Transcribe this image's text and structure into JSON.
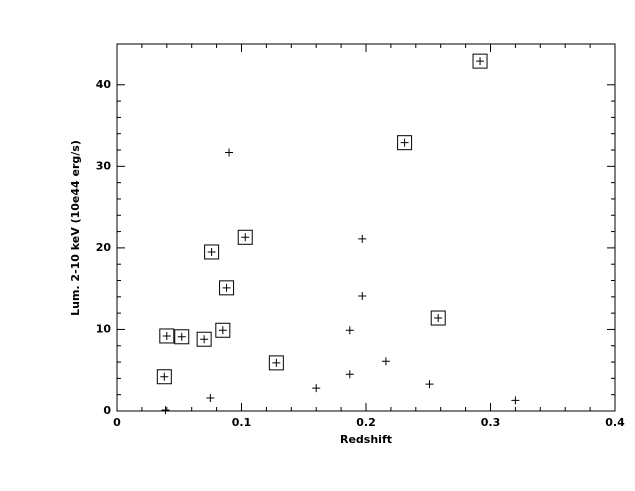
{
  "chart_data": {
    "type": "scatter",
    "xlabel": "Redshift",
    "ylabel": "Lum. 2-10 keV (10e44 erg/s)",
    "xlim": [
      0,
      0.4
    ],
    "xticks": [
      0,
      0.1,
      0.2,
      0.3,
      0.4
    ],
    "ylim": [
      0,
      45
    ],
    "yticks": [
      0,
      10,
      20,
      30,
      40
    ],
    "series": [
      {
        "marker": "boxed-plus",
        "color": "#000000",
        "x": [
          0.2916,
          0.231,
          0.076,
          0.103,
          0.088,
          0.258,
          0.085,
          0.04,
          0.052,
          0.07,
          0.128,
          0.038
        ],
        "values": [
          42.9,
          32.9,
          19.5,
          21.3,
          15.1,
          11.4,
          9.9,
          9.2,
          9.1,
          8.8,
          5.9,
          4.2
        ]
      },
      {
        "marker": "plus",
        "color": "#000000",
        "x": [
          0.09,
          0.197,
          0.197,
          0.187,
          0.216,
          0.187,
          0.16,
          0.251,
          0.075,
          0.32,
          0.039
        ],
        "values": [
          31.7,
          21.1,
          14.1,
          9.9,
          6.1,
          4.5,
          2.8,
          3.3,
          1.6,
          1.3,
          0.1
        ]
      }
    ]
  }
}
